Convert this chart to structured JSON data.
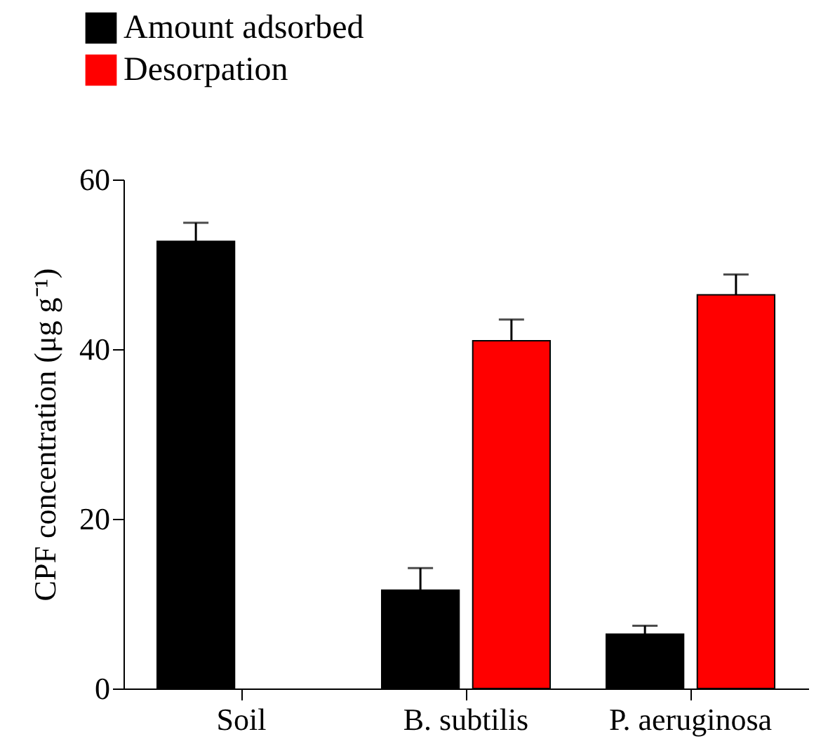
{
  "chart_data": {
    "type": "bar",
    "ylabel": "CPF concentration (μg g⁻¹)",
    "categories": [
      "Soil",
      "B. subtilis",
      "P. aeruginosa"
    ],
    "series": [
      {
        "name": "Amount adsorbed",
        "color": "#000000",
        "values": [
          52.7,
          11.6,
          6.4
        ],
        "errors": [
          [
            52.7,
            54.9
          ],
          [
            11.6,
            14.2
          ],
          [
            6.4,
            7.4
          ]
        ]
      },
      {
        "name": "Desorpation",
        "color": "#ff0000",
        "values": [
          null,
          41.0,
          46.4
        ],
        "errors": [
          null,
          [
            41.0,
            43.5
          ],
          [
            46.4,
            48.8
          ]
        ]
      }
    ],
    "ylim": [
      0,
      60
    ],
    "yticks": [
      0,
      20,
      40,
      60
    ],
    "grid": false,
    "legend": "top left"
  }
}
